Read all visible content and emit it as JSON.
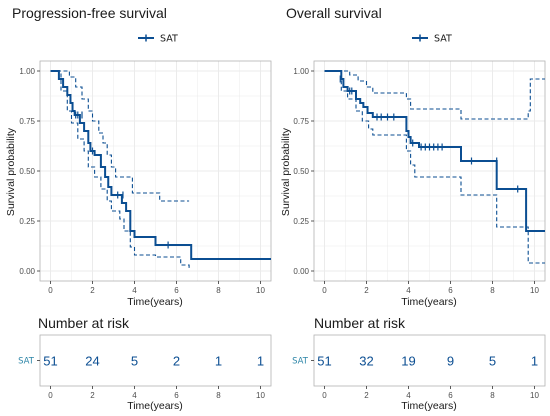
{
  "colors": {
    "series": "#0B4E92",
    "grid": "#EBEBEB",
    "panel_border": "#B3B3B3",
    "risk_strata": "#2E86A8"
  },
  "chart_data": [
    {
      "type": "line",
      "subtype": "kaplan-meier",
      "title": "Progression-free survival",
      "xlabel": "Time(years)",
      "ylabel": "Survival probability",
      "xlim": [
        -0.5,
        10.5
      ],
      "ylim": [
        -0.05,
        1.05
      ],
      "x_ticks": [
        0,
        2,
        4,
        6,
        8,
        10
      ],
      "y_ticks": [
        0,
        0.25,
        0.5,
        0.75,
        1
      ],
      "y_tick_labels": [
        "0.00",
        "0.25",
        "0.50",
        "0.75",
        "1.00"
      ],
      "legend": {
        "position": "top",
        "entries": [
          "SAT"
        ]
      },
      "series": [
        {
          "name": "SAT",
          "steps": [
            [
              0,
              1.0
            ],
            [
              0.4,
              0.96
            ],
            [
              0.6,
              0.92
            ],
            [
              0.8,
              0.88
            ],
            [
              0.95,
              0.84
            ],
            [
              1.05,
              0.8
            ],
            [
              1.15,
              0.78
            ],
            [
              1.4,
              0.74
            ],
            [
              1.6,
              0.7
            ],
            [
              1.8,
              0.64
            ],
            [
              1.9,
              0.6
            ],
            [
              2.1,
              0.58
            ],
            [
              2.4,
              0.52
            ],
            [
              2.6,
              0.47
            ],
            [
              2.75,
              0.42
            ],
            [
              2.9,
              0.38
            ],
            [
              3.4,
              0.34
            ],
            [
              3.6,
              0.3
            ],
            [
              3.8,
              0.2
            ],
            [
              4.0,
              0.17
            ],
            [
              5.0,
              0.13
            ],
            [
              6.7,
              0.06
            ],
            [
              10.5,
              0.06
            ]
          ],
          "lower": [
            [
              0,
              1.0
            ],
            [
              0.5,
              0.9
            ],
            [
              0.8,
              0.8
            ],
            [
              1.0,
              0.74
            ],
            [
              1.3,
              0.66
            ],
            [
              1.6,
              0.6
            ],
            [
              1.8,
              0.52
            ],
            [
              2.1,
              0.47
            ],
            [
              2.4,
              0.41
            ],
            [
              2.7,
              0.35
            ],
            [
              2.9,
              0.3
            ],
            [
              3.3,
              0.26
            ],
            [
              3.5,
              0.2
            ],
            [
              3.8,
              0.12
            ],
            [
              4.0,
              0.08
            ],
            [
              5.0,
              0.07
            ],
            [
              6.2,
              0.03
            ],
            [
              6.6,
              0.01
            ]
          ],
          "upper": [
            [
              0,
              1.0
            ],
            [
              0.6,
              1.0
            ],
            [
              0.9,
              0.97
            ],
            [
              1.2,
              0.92
            ],
            [
              1.5,
              0.86
            ],
            [
              1.8,
              0.8
            ],
            [
              2.0,
              0.75
            ],
            [
              2.3,
              0.69
            ],
            [
              2.5,
              0.64
            ],
            [
              2.7,
              0.58
            ],
            [
              2.9,
              0.52
            ],
            [
              3.1,
              0.47
            ],
            [
              3.5,
              0.47
            ],
            [
              3.9,
              0.39
            ],
            [
              5.0,
              0.39
            ],
            [
              5.2,
              0.35
            ],
            [
              6.6,
              0.35
            ]
          ],
          "censor": [
            [
              1.2,
              0.78
            ],
            [
              1.3,
              0.78
            ],
            [
              1.5,
              0.78
            ],
            [
              2.0,
              0.6
            ],
            [
              3.2,
              0.38
            ],
            [
              3.45,
              0.38
            ],
            [
              5.6,
              0.13
            ]
          ]
        }
      ]
    },
    {
      "type": "line",
      "subtype": "kaplan-meier",
      "title": "Overall survival",
      "xlabel": "Time(years)",
      "ylabel": "Survival probability",
      "xlim": [
        -0.5,
        10.5
      ],
      "ylim": [
        -0.05,
        1.05
      ],
      "x_ticks": [
        0,
        2,
        4,
        6,
        8,
        10
      ],
      "y_ticks": [
        0,
        0.25,
        0.5,
        0.75,
        1
      ],
      "y_tick_labels": [
        "0.00",
        "0.25",
        "0.50",
        "0.75",
        "1.00"
      ],
      "legend": {
        "position": "top",
        "entries": [
          "SAT"
        ]
      },
      "series": [
        {
          "name": "SAT",
          "steps": [
            [
              0,
              1.0
            ],
            [
              0.8,
              0.96
            ],
            [
              0.9,
              0.92
            ],
            [
              1.1,
              0.9
            ],
            [
              1.5,
              0.86
            ],
            [
              1.7,
              0.84
            ],
            [
              1.85,
              0.82
            ],
            [
              2.05,
              0.79
            ],
            [
              2.3,
              0.77
            ],
            [
              3.9,
              0.7
            ],
            [
              4.0,
              0.67
            ],
            [
              4.1,
              0.64
            ],
            [
              4.5,
              0.62
            ],
            [
              6.5,
              0.55
            ],
            [
              8.2,
              0.41
            ],
            [
              9.6,
              0.2
            ],
            [
              10.5,
              0.2
            ]
          ],
          "lower": [
            [
              0,
              1.0
            ],
            [
              0.8,
              0.9
            ],
            [
              1.1,
              0.86
            ],
            [
              1.5,
              0.8
            ],
            [
              1.8,
              0.75
            ],
            [
              2.1,
              0.71
            ],
            [
              2.3,
              0.68
            ],
            [
              3.9,
              0.6
            ],
            [
              4.1,
              0.53
            ],
            [
              4.3,
              0.47
            ],
            [
              5.2,
              0.47
            ],
            [
              6.5,
              0.38
            ],
            [
              7.7,
              0.38
            ],
            [
              8.2,
              0.22
            ],
            [
              9.5,
              0.22
            ],
            [
              9.7,
              0.04
            ],
            [
              10.5,
              0.04
            ]
          ],
          "upper": [
            [
              0,
              1.0
            ],
            [
              0.8,
              1.0
            ],
            [
              1.2,
              0.98
            ],
            [
              1.6,
              0.95
            ],
            [
              2.0,
              0.92
            ],
            [
              2.3,
              0.89
            ],
            [
              3.9,
              0.86
            ],
            [
              4.1,
              0.81
            ],
            [
              4.5,
              0.81
            ],
            [
              6.5,
              0.76
            ],
            [
              8.2,
              0.76
            ],
            [
              9.7,
              0.8
            ],
            [
              9.8,
              0.96
            ],
            [
              10.5,
              0.96
            ]
          ],
          "censor": [
            [
              0.75,
              0.96
            ],
            [
              1.2,
              0.9
            ],
            [
              1.3,
              0.9
            ],
            [
              2.5,
              0.77
            ],
            [
              2.7,
              0.77
            ],
            [
              3.0,
              0.77
            ],
            [
              3.3,
              0.77
            ],
            [
              4.2,
              0.64
            ],
            [
              4.6,
              0.62
            ],
            [
              4.8,
              0.62
            ],
            [
              5.0,
              0.62
            ],
            [
              5.2,
              0.62
            ],
            [
              5.4,
              0.62
            ],
            [
              5.6,
              0.62
            ],
            [
              7.0,
              0.55
            ],
            [
              8.2,
              0.55
            ],
            [
              9.2,
              0.41
            ]
          ]
        }
      ]
    },
    {
      "type": "table",
      "title": "Number at risk",
      "xlabel": "Time(years)",
      "x_ticks": [
        0,
        2,
        4,
        6,
        8,
        10
      ],
      "strata": "SAT",
      "values": [
        51,
        24,
        5,
        2,
        1,
        1
      ]
    },
    {
      "type": "table",
      "title": "Number at risk",
      "xlabel": "Time(years)",
      "x_ticks": [
        0,
        2,
        4,
        6,
        8,
        10
      ],
      "strata": "SAT",
      "values": [
        51,
        32,
        19,
        9,
        5,
        1
      ]
    }
  ]
}
